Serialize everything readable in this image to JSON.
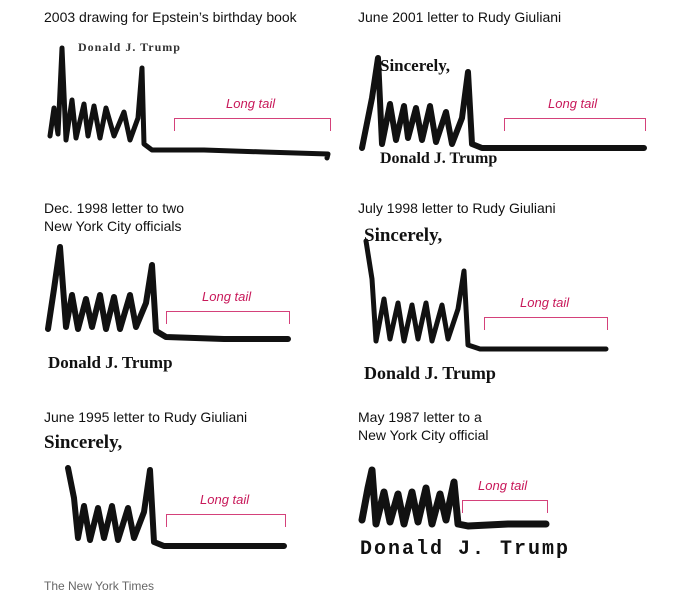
{
  "panels": [
    {
      "caption": "2003 drawing for Epstein’s birthday book",
      "typed_above": "Donald J. Trump",
      "tail_label": "Long tail"
    },
    {
      "caption": "June 2001 letter to Rudy Giuliani",
      "typed_above": "Sincerely,",
      "typed_below": "Donald J. Trump",
      "tail_label": "Long tail"
    },
    {
      "caption": "Dec. 1998 letter to two\nNew York City officials",
      "typed_below": "Donald J. Trump",
      "tail_label": "Long tail"
    },
    {
      "caption": "July 1998 letter to Rudy Giuliani",
      "typed_above": "Sincerely,",
      "typed_below": "Donald J. Trump",
      "tail_label": "Long tail"
    },
    {
      "caption": "June 1995 letter to Rudy Giuliani",
      "typed_above": "Sincerely,",
      "tail_label": "Long tail"
    },
    {
      "caption": "May 1987 letter to a\nNew York City official",
      "typed_below": "Donald J. Trump",
      "tail_label": "Long tail"
    }
  ],
  "credit": "The New York Times",
  "colors": {
    "accent": "#c8195a",
    "ink": "#111111"
  }
}
